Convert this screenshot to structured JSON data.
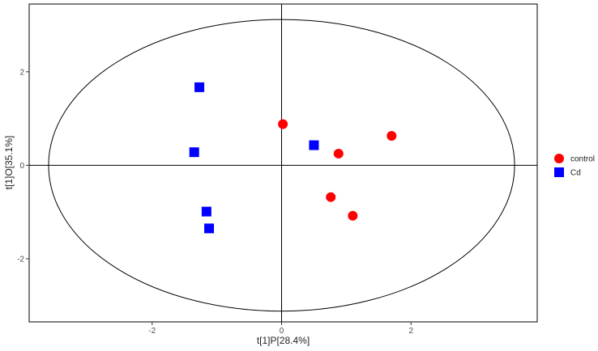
{
  "chart_data": {
    "type": "scatter",
    "title": "",
    "xlabel": "t[1]P[28.4%]",
    "ylabel": "t[1]O[35.1%]",
    "xlim": [
      -3.9,
      3.95
    ],
    "ylim": [
      -3.35,
      3.45
    ],
    "x_ticks": [
      -2,
      0,
      2
    ],
    "y_ticks": [
      -2,
      0,
      2
    ],
    "grid": false,
    "reference_lines": {
      "x": 0,
      "y": 0
    },
    "ellipse": {
      "center": [
        0,
        0
      ],
      "rx": 3.6,
      "ry": 3.12
    },
    "legend_position": "right",
    "series": [
      {
        "name": "control",
        "marker": "circle",
        "color": "#ff0000",
        "points": [
          {
            "x": 0.02,
            "y": 0.88
          },
          {
            "x": 1.7,
            "y": 0.63
          },
          {
            "x": 0.88,
            "y": 0.25
          },
          {
            "x": 0.76,
            "y": -0.68
          },
          {
            "x": 1.1,
            "y": -1.08
          }
        ]
      },
      {
        "name": "Cd",
        "marker": "square",
        "color": "#0000ff",
        "points": [
          {
            "x": -1.27,
            "y": 1.67
          },
          {
            "x": -1.35,
            "y": 0.28
          },
          {
            "x": 0.5,
            "y": 0.43
          },
          {
            "x": -1.16,
            "y": -0.99
          },
          {
            "x": -1.12,
            "y": -1.35
          }
        ]
      }
    ]
  }
}
